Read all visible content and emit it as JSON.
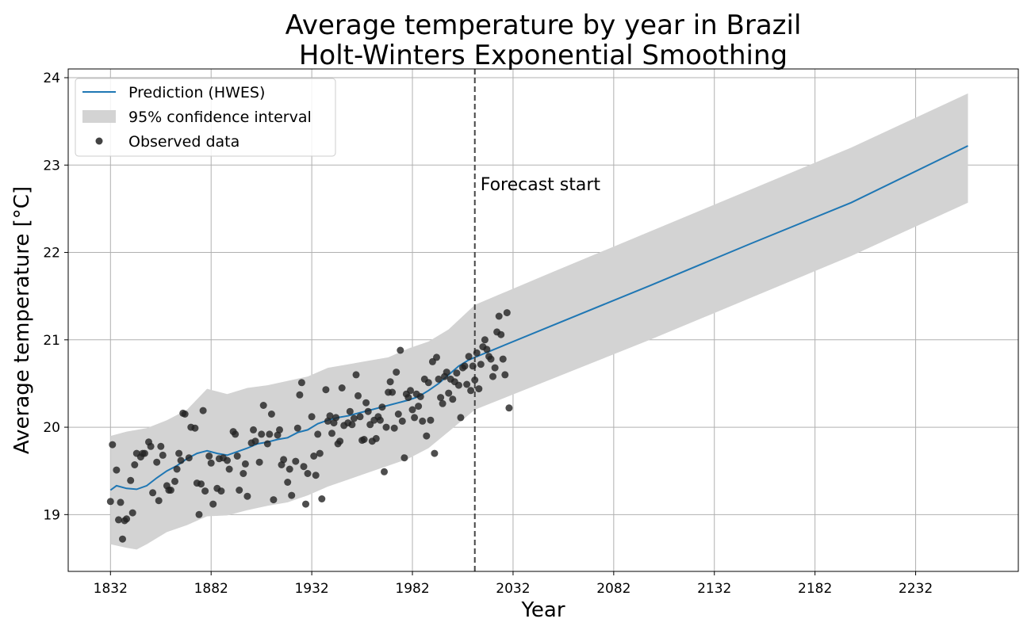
{
  "chart_data": {
    "type": "line",
    "title": "Average temperature by year in Brazil",
    "subtitle": "Holt-Winters Exponential Smoothing",
    "xlabel": "Year",
    "ylabel": "Average temperature [°C]",
    "xlim": [
      1811,
      2283
    ],
    "ylim": [
      18.35,
      24.1
    ],
    "xticks": [
      1832,
      1882,
      1932,
      1982,
      2032,
      2082,
      2132,
      2182,
      2232
    ],
    "yticks": [
      19,
      20,
      21,
      22,
      23,
      24
    ],
    "grid": true,
    "legend_position": "top-left",
    "legend": {
      "prediction": "Prediction (HWES)",
      "ci": "95% confidence interval",
      "observed": "Observed data"
    },
    "annotation": {
      "text": "Forecast start",
      "x": 2013
    },
    "colors": {
      "prediction": "#1f77b4",
      "ci": "#d3d3d3",
      "observed": "#222222",
      "grid": "#b0b0b0",
      "vline": "#444444"
    },
    "series": [
      {
        "name": "Prediction (HWES)",
        "points": [
          [
            1832,
            19.28
          ],
          [
            1835,
            19.33
          ],
          [
            1840,
            19.3
          ],
          [
            1845,
            19.29
          ],
          [
            1850,
            19.33
          ],
          [
            1855,
            19.42
          ],
          [
            1860,
            19.5
          ],
          [
            1865,
            19.56
          ],
          [
            1870,
            19.64
          ],
          [
            1875,
            19.7
          ],
          [
            1880,
            19.73
          ],
          [
            1885,
            19.7
          ],
          [
            1890,
            19.68
          ],
          [
            1895,
            19.72
          ],
          [
            1900,
            19.76
          ],
          [
            1905,
            19.81
          ],
          [
            1910,
            19.83
          ],
          [
            1915,
            19.86
          ],
          [
            1920,
            19.88
          ],
          [
            1925,
            19.94
          ],
          [
            1930,
            19.97
          ],
          [
            1935,
            20.04
          ],
          [
            1940,
            20.08
          ],
          [
            1945,
            20.11
          ],
          [
            1950,
            20.13
          ],
          [
            1955,
            20.16
          ],
          [
            1960,
            20.19
          ],
          [
            1965,
            20.22
          ],
          [
            1970,
            20.25
          ],
          [
            1975,
            20.28
          ],
          [
            1980,
            20.31
          ],
          [
            1985,
            20.35
          ],
          [
            1990,
            20.42
          ],
          [
            1995,
            20.5
          ],
          [
            2000,
            20.6
          ],
          [
            2005,
            20.7
          ],
          [
            2010,
            20.77
          ],
          [
            2013,
            20.8
          ],
          [
            2050,
            21.15
          ],
          [
            2100,
            21.62
          ],
          [
            2150,
            22.1
          ],
          [
            2200,
            22.57
          ],
          [
            2258,
            23.22
          ]
        ]
      },
      {
        "name": "95% confidence interval",
        "lower": [
          [
            1832,
            18.66
          ],
          [
            1840,
            18.62
          ],
          [
            1845,
            18.6
          ],
          [
            1850,
            18.66
          ],
          [
            1860,
            18.8
          ],
          [
            1870,
            18.88
          ],
          [
            1880,
            18.98
          ],
          [
            1890,
            18.99
          ],
          [
            1900,
            19.05
          ],
          [
            1910,
            19.1
          ],
          [
            1920,
            19.14
          ],
          [
            1930,
            19.22
          ],
          [
            1940,
            19.32
          ],
          [
            1950,
            19.4
          ],
          [
            1960,
            19.48
          ],
          [
            1970,
            19.56
          ],
          [
            1980,
            19.64
          ],
          [
            1990,
            19.76
          ],
          [
            2000,
            19.95
          ],
          [
            2013,
            20.2
          ],
          [
            2050,
            20.54
          ],
          [
            2100,
            21.0
          ],
          [
            2150,
            21.48
          ],
          [
            2200,
            21.96
          ],
          [
            2258,
            22.57
          ]
        ],
        "upper": [
          [
            1832,
            19.9
          ],
          [
            1840,
            19.95
          ],
          [
            1850,
            19.99
          ],
          [
            1860,
            20.08
          ],
          [
            1870,
            20.2
          ],
          [
            1880,
            20.44
          ],
          [
            1890,
            20.38
          ],
          [
            1900,
            20.45
          ],
          [
            1910,
            20.48
          ],
          [
            1920,
            20.53
          ],
          [
            1930,
            20.58
          ],
          [
            1940,
            20.68
          ],
          [
            1950,
            20.72
          ],
          [
            1960,
            20.76
          ],
          [
            1970,
            20.8
          ],
          [
            1980,
            20.9
          ],
          [
            1990,
            20.98
          ],
          [
            2000,
            21.12
          ],
          [
            2013,
            21.4
          ],
          [
            2050,
            21.76
          ],
          [
            2100,
            22.24
          ],
          [
            2150,
            22.72
          ],
          [
            2200,
            23.2
          ],
          [
            2258,
            23.82
          ]
        ]
      },
      {
        "name": "Observed data",
        "points": [
          [
            1832,
            19.15
          ],
          [
            1833,
            19.8
          ],
          [
            1835,
            19.51
          ],
          [
            1836,
            18.94
          ],
          [
            1837,
            19.14
          ],
          [
            1838,
            18.72
          ],
          [
            1839,
            18.93
          ],
          [
            1840,
            18.95
          ],
          [
            1842,
            19.39
          ],
          [
            1843,
            19.02
          ],
          [
            1844,
            19.57
          ],
          [
            1845,
            19.7
          ],
          [
            1847,
            19.66
          ],
          [
            1848,
            19.7
          ],
          [
            1849,
            19.7
          ],
          [
            1851,
            19.83
          ],
          [
            1852,
            19.78
          ],
          [
            1853,
            19.25
          ],
          [
            1855,
            19.6
          ],
          [
            1856,
            19.16
          ],
          [
            1857,
            19.78
          ],
          [
            1858,
            19.68
          ],
          [
            1860,
            19.33
          ],
          [
            1861,
            19.28
          ],
          [
            1862,
            19.28
          ],
          [
            1864,
            19.38
          ],
          [
            1865,
            19.52
          ],
          [
            1866,
            19.7
          ],
          [
            1867,
            19.62
          ],
          [
            1868,
            20.16
          ],
          [
            1869,
            20.15
          ],
          [
            1871,
            19.65
          ],
          [
            1872,
            20.0
          ],
          [
            1874,
            19.99
          ],
          [
            1875,
            19.36
          ],
          [
            1876,
            19.0
          ],
          [
            1877,
            19.35
          ],
          [
            1878,
            20.19
          ],
          [
            1879,
            19.27
          ],
          [
            1881,
            19.67
          ],
          [
            1882,
            19.59
          ],
          [
            1883,
            19.12
          ],
          [
            1885,
            19.3
          ],
          [
            1886,
            19.64
          ],
          [
            1887,
            19.27
          ],
          [
            1888,
            19.65
          ],
          [
            1890,
            19.62
          ],
          [
            1891,
            19.52
          ],
          [
            1893,
            19.95
          ],
          [
            1894,
            19.92
          ],
          [
            1895,
            19.67
          ],
          [
            1896,
            19.28
          ],
          [
            1898,
            19.47
          ],
          [
            1899,
            19.58
          ],
          [
            1900,
            19.21
          ],
          [
            1902,
            19.82
          ],
          [
            1903,
            19.97
          ],
          [
            1904,
            19.84
          ],
          [
            1906,
            19.6
          ],
          [
            1907,
            19.92
          ],
          [
            1908,
            20.25
          ],
          [
            1910,
            19.81
          ],
          [
            1911,
            19.92
          ],
          [
            1912,
            20.15
          ],
          [
            1913,
            19.17
          ],
          [
            1915,
            19.91
          ],
          [
            1916,
            19.97
          ],
          [
            1917,
            19.57
          ],
          [
            1918,
            19.63
          ],
          [
            1920,
            19.37
          ],
          [
            1921,
            19.52
          ],
          [
            1922,
            19.22
          ],
          [
            1924,
            19.61
          ],
          [
            1925,
            19.99
          ],
          [
            1926,
            20.37
          ],
          [
            1927,
            20.51
          ],
          [
            1928,
            19.55
          ],
          [
            1929,
            19.12
          ],
          [
            1930,
            19.47
          ],
          [
            1932,
            20.12
          ],
          [
            1933,
            19.67
          ],
          [
            1934,
            19.45
          ],
          [
            1935,
            19.92
          ],
          [
            1936,
            19.7
          ],
          [
            1937,
            19.18
          ],
          [
            1939,
            20.43
          ],
          [
            1940,
            20.07
          ],
          [
            1941,
            20.13
          ],
          [
            1942,
            19.93
          ],
          [
            1943,
            20.05
          ],
          [
            1944,
            20.11
          ],
          [
            1945,
            19.81
          ],
          [
            1946,
            19.84
          ],
          [
            1947,
            20.45
          ],
          [
            1948,
            20.02
          ],
          [
            1950,
            20.05
          ],
          [
            1951,
            20.18
          ],
          [
            1952,
            20.03
          ],
          [
            1953,
            20.1
          ],
          [
            1954,
            20.6
          ],
          [
            1955,
            20.36
          ],
          [
            1956,
            20.12
          ],
          [
            1957,
            19.85
          ],
          [
            1958,
            19.86
          ],
          [
            1959,
            20.28
          ],
          [
            1960,
            20.18
          ],
          [
            1961,
            20.03
          ],
          [
            1962,
            19.84
          ],
          [
            1963,
            20.08
          ],
          [
            1964,
            19.87
          ],
          [
            1965,
            20.12
          ],
          [
            1966,
            20.08
          ],
          [
            1967,
            20.23
          ],
          [
            1968,
            19.49
          ],
          [
            1969,
            20.0
          ],
          [
            1970,
            20.4
          ],
          [
            1971,
            20.52
          ],
          [
            1972,
            20.4
          ],
          [
            1973,
            19.99
          ],
          [
            1974,
            20.63
          ],
          [
            1975,
            20.15
          ],
          [
            1976,
            20.88
          ],
          [
            1977,
            20.07
          ],
          [
            1978,
            19.65
          ],
          [
            1979,
            20.38
          ],
          [
            1980,
            20.34
          ],
          [
            1981,
            20.42
          ],
          [
            1982,
            20.2
          ],
          [
            1983,
            20.11
          ],
          [
            1984,
            20.38
          ],
          [
            1985,
            20.24
          ],
          [
            1986,
            20.35
          ],
          [
            1987,
            20.07
          ],
          [
            1988,
            20.55
          ],
          [
            1989,
            19.9
          ],
          [
            1990,
            20.51
          ],
          [
            1991,
            20.08
          ],
          [
            1992,
            20.75
          ],
          [
            1993,
            19.7
          ],
          [
            1994,
            20.8
          ],
          [
            1995,
            20.55
          ],
          [
            1996,
            20.34
          ],
          [
            1997,
            20.27
          ],
          [
            1998,
            20.58
          ],
          [
            1999,
            20.63
          ],
          [
            2000,
            20.39
          ],
          [
            2001,
            20.55
          ],
          [
            2002,
            20.32
          ],
          [
            2003,
            20.52
          ],
          [
            2004,
            20.62
          ],
          [
            2005,
            20.48
          ],
          [
            2006,
            20.11
          ],
          [
            2007,
            20.68
          ],
          [
            2008,
            20.7
          ],
          [
            2009,
            20.49
          ],
          [
            2010,
            20.81
          ],
          [
            2011,
            20.42
          ],
          [
            2012,
            20.7
          ],
          [
            2013,
            20.54
          ],
          [
            2014,
            20.85
          ],
          [
            2015,
            20.44
          ],
          [
            2016,
            20.72
          ],
          [
            2017,
            20.92
          ],
          [
            2018,
            21.0
          ],
          [
            2019,
            20.89
          ],
          [
            2020,
            20.81
          ],
          [
            2021,
            20.78
          ],
          [
            2022,
            20.58
          ],
          [
            2023,
            20.68
          ],
          [
            2024,
            21.09
          ],
          [
            2025,
            21.27
          ],
          [
            2026,
            21.06
          ],
          [
            2027,
            20.78
          ],
          [
            2028,
            20.6
          ],
          [
            2029,
            21.31
          ],
          [
            2030,
            20.22
          ]
        ]
      }
    ]
  }
}
